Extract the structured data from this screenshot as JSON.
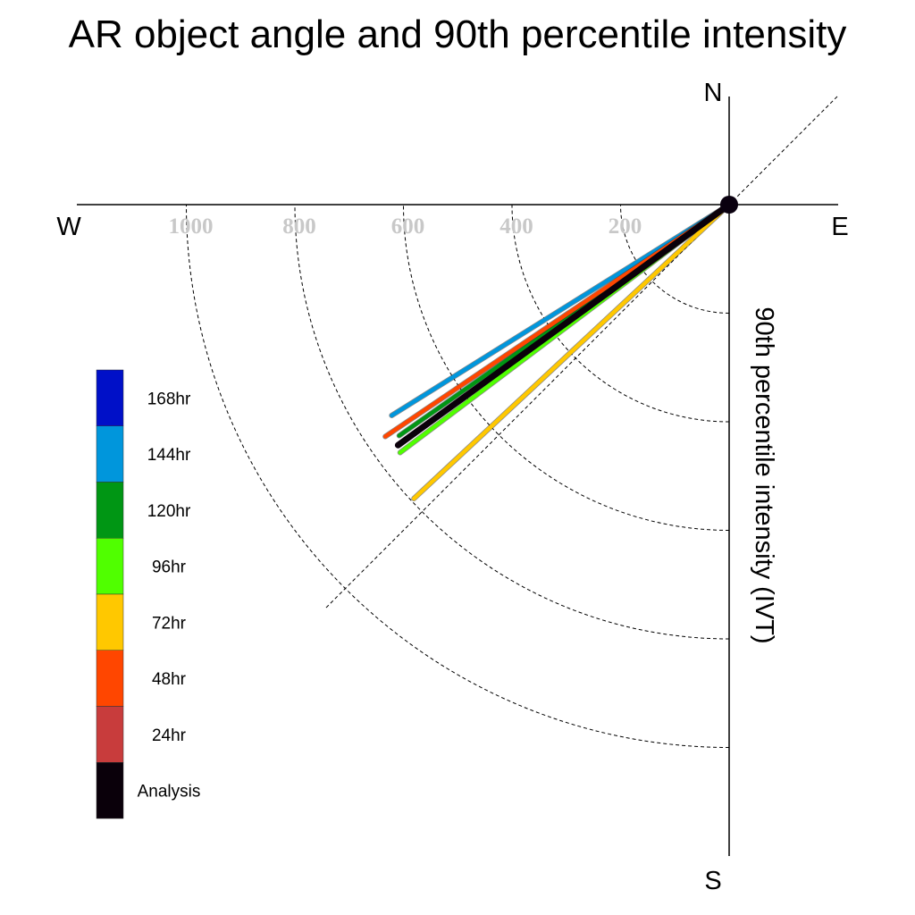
{
  "title": "AR object angle and 90th percentile intensity",
  "compass": {
    "north": "N",
    "east": "E",
    "south": "S",
    "west": "W"
  },
  "chart_data": {
    "type": "polar-line",
    "title": "AR object angle and 90th percentile intensity",
    "radial_axis_label": "90th percentile intensity (IVT)",
    "radial_ticks": [
      200,
      400,
      600,
      800,
      1000
    ],
    "radial_tick_labels": [
      "200",
      "400",
      "600",
      "800",
      "1000"
    ],
    "r_max": 1200,
    "grid": true,
    "legend_position": "bottom-left",
    "series": [
      {
        "name": "168hr",
        "color": "#0010c8",
        "angle_deg": 230,
        "intensity": 0
      },
      {
        "name": "144hr",
        "color": "#0096dc",
        "angle_deg": 238,
        "intensity": 733
      },
      {
        "name": "120hr",
        "color": "#009614",
        "angle_deg": 235,
        "intensity": 742
      },
      {
        "name": "96hr",
        "color": "#50ff00",
        "angle_deg": 233,
        "intensity": 759
      },
      {
        "name": "72hr",
        "color": "#ffc800",
        "angle_deg": 227,
        "intensity": 794
      },
      {
        "name": "48hr",
        "color": "#ff4600",
        "angle_deg": 236,
        "intensity": 764
      },
      {
        "name": "24hr",
        "color": "#c83c3c",
        "angle_deg": 234,
        "intensity": 750
      },
      {
        "name": "Analysis",
        "color": "#0a000a",
        "angle_deg": 234,
        "intensity": 754
      }
    ]
  }
}
